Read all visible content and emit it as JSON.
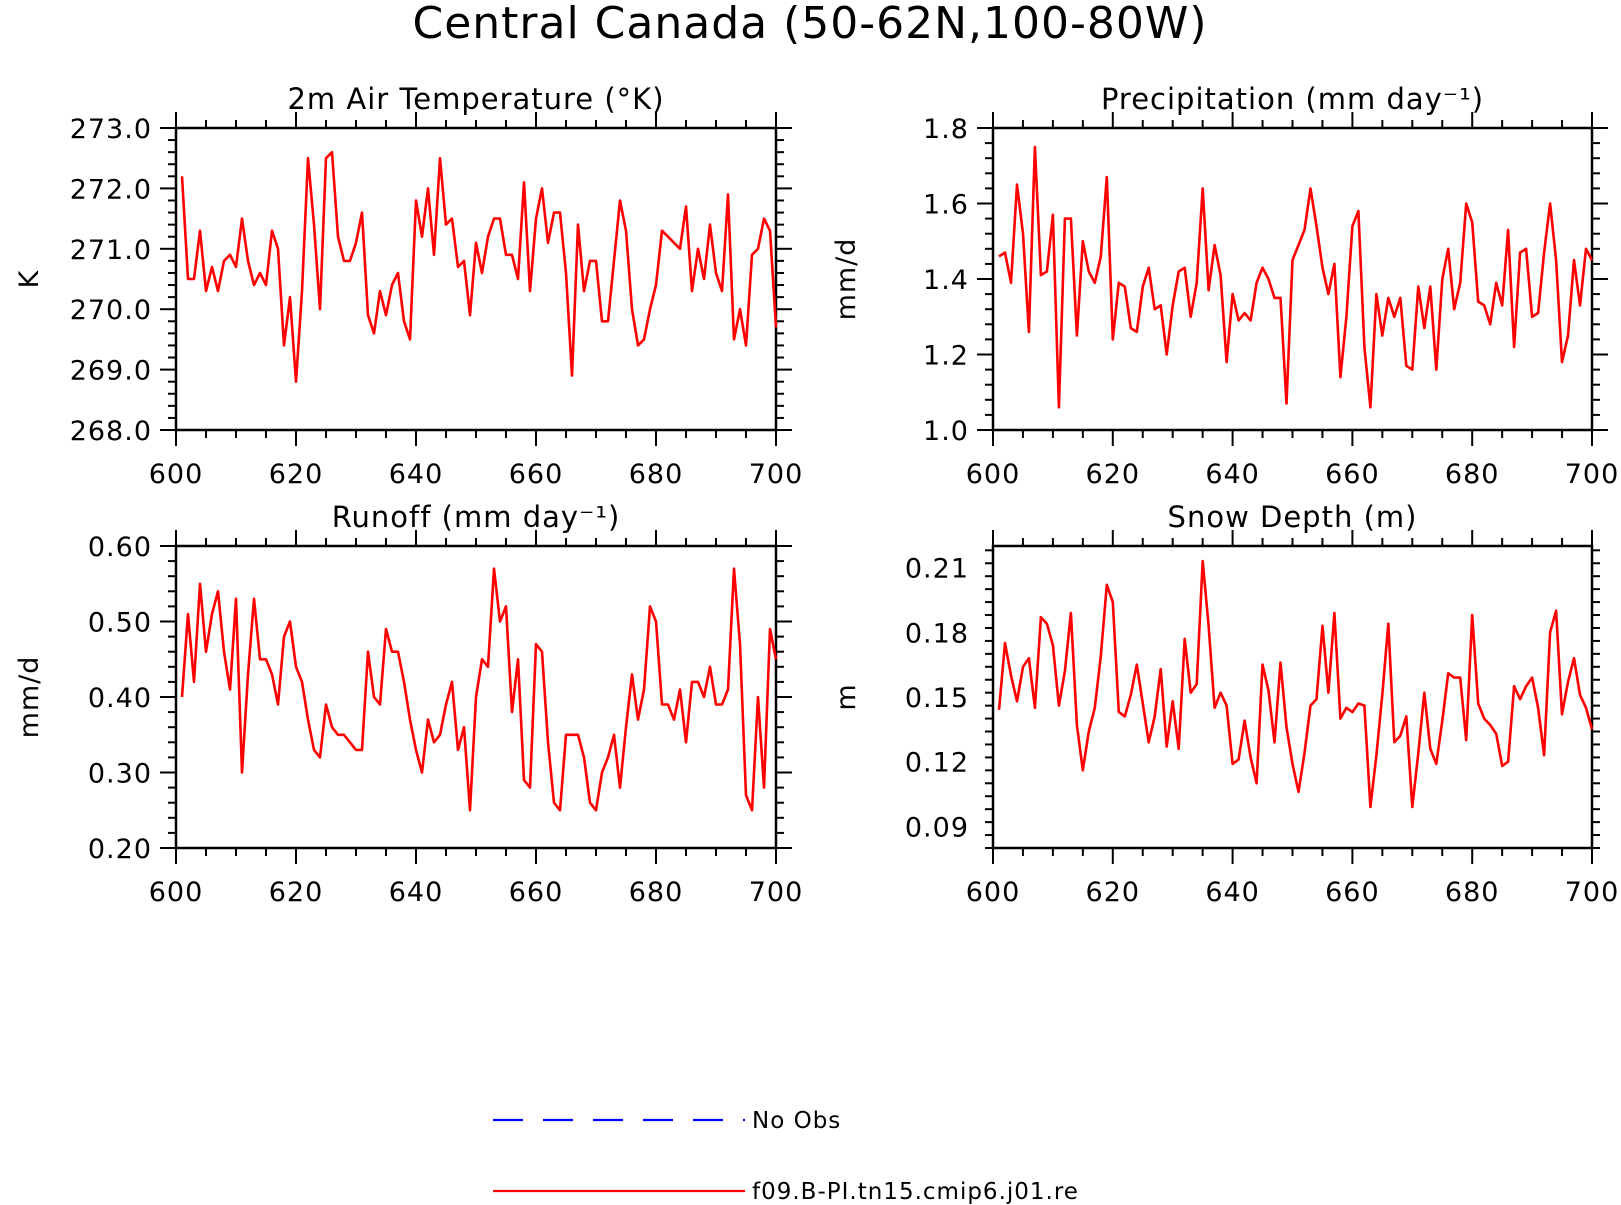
{
  "title": "Central Canada (50-62N,100-80W)",
  "legend": [
    {
      "label": "No Obs",
      "color": "#0000ff",
      "style": "dashed"
    },
    {
      "label": "f09.B-PI.tn15.cmip6.j01.re",
      "color": "#ff0000",
      "style": "solid"
    }
  ],
  "chart_data": [
    {
      "type": "line",
      "title": "2m Air Temperature (°K)",
      "ylabel": "K",
      "xlim": [
        600,
        700
      ],
      "ylim": [
        268.0,
        273.0
      ],
      "xticks": [
        "600",
        "620",
        "640",
        "660",
        "680",
        "700"
      ],
      "yticks": [
        "268.0",
        "269.0",
        "270.0",
        "271.0",
        "272.0",
        "273.0"
      ],
      "x_start": 601,
      "series": [
        {
          "color": "#ff0000",
          "values": [
            272.2,
            270.5,
            270.5,
            271.3,
            270.3,
            270.7,
            270.3,
            270.8,
            270.9,
            270.7,
            271.5,
            270.8,
            270.4,
            270.6,
            270.4,
            271.3,
            271.0,
            269.4,
            270.2,
            268.8,
            270.3,
            272.5,
            271.4,
            270.0,
            272.5,
            272.6,
            271.2,
            270.8,
            270.8,
            271.1,
            271.6,
            269.9,
            269.6,
            270.3,
            269.9,
            270.4,
            270.6,
            269.8,
            269.5,
            271.8,
            271.2,
            272.0,
            270.9,
            272.5,
            271.4,
            271.5,
            270.7,
            270.8,
            269.9,
            271.1,
            270.6,
            271.2,
            271.5,
            271.5,
            270.9,
            270.9,
            270.5,
            272.1,
            270.3,
            271.5,
            272.0,
            271.1,
            271.6,
            271.6,
            270.6,
            268.9,
            271.4,
            270.3,
            270.8,
            270.8,
            269.8,
            269.8,
            270.8,
            271.8,
            271.3,
            270.0,
            269.4,
            269.5,
            270.0,
            270.4,
            271.3,
            271.2,
            271.1,
            271.0,
            271.7,
            270.3,
            271.0,
            270.5,
            271.4,
            270.6,
            270.3,
            271.9,
            269.5,
            270.0,
            269.4,
            270.9,
            271.0,
            271.5,
            271.3,
            269.7
          ]
        }
      ]
    },
    {
      "type": "line",
      "title": "Precipitation (mm day⁻¹)",
      "ylabel": "mm/d",
      "xlim": [
        600,
        700
      ],
      "ylim": [
        1.0,
        1.8
      ],
      "xticks": [
        "600",
        "620",
        "640",
        "660",
        "680",
        "700"
      ],
      "yticks": [
        "1.0",
        "1.2",
        "1.4",
        "1.6",
        "1.8"
      ],
      "x_start": 601,
      "series": [
        {
          "color": "#ff0000",
          "values": [
            1.46,
            1.47,
            1.39,
            1.65,
            1.52,
            1.26,
            1.75,
            1.41,
            1.42,
            1.57,
            1.06,
            1.56,
            1.56,
            1.25,
            1.5,
            1.42,
            1.39,
            1.46,
            1.67,
            1.24,
            1.39,
            1.38,
            1.27,
            1.26,
            1.38,
            1.43,
            1.32,
            1.33,
            1.2,
            1.33,
            1.42,
            1.43,
            1.3,
            1.39,
            1.64,
            1.37,
            1.49,
            1.41,
            1.18,
            1.36,
            1.29,
            1.31,
            1.29,
            1.39,
            1.43,
            1.4,
            1.35,
            1.35,
            1.07,
            1.45,
            1.49,
            1.53,
            1.64,
            1.54,
            1.43,
            1.36,
            1.44,
            1.14,
            1.3,
            1.54,
            1.58,
            1.22,
            1.06,
            1.36,
            1.25,
            1.35,
            1.3,
            1.35,
            1.17,
            1.16,
            1.38,
            1.27,
            1.38,
            1.16,
            1.4,
            1.48,
            1.32,
            1.39,
            1.6,
            1.55,
            1.34,
            1.33,
            1.28,
            1.39,
            1.33,
            1.53,
            1.22,
            1.47,
            1.48,
            1.3,
            1.31,
            1.47,
            1.6,
            1.45,
            1.18,
            1.25,
            1.45,
            1.33,
            1.48,
            1.45
          ]
        }
      ]
    },
    {
      "type": "line",
      "title": "Runoff (mm day⁻¹)",
      "ylabel": "mm/d",
      "xlim": [
        600,
        700
      ],
      "ylim": [
        0.2,
        0.6
      ],
      "xticks": [
        "600",
        "620",
        "640",
        "660",
        "680",
        "700"
      ],
      "yticks": [
        "0.20",
        "0.30",
        "0.40",
        "0.50",
        "0.60"
      ],
      "x_start": 601,
      "series": [
        {
          "color": "#ff0000",
          "values": [
            0.4,
            0.51,
            0.42,
            0.55,
            0.46,
            0.51,
            0.54,
            0.46,
            0.41,
            0.53,
            0.3,
            0.43,
            0.53,
            0.45,
            0.45,
            0.43,
            0.39,
            0.48,
            0.5,
            0.44,
            0.42,
            0.37,
            0.33,
            0.32,
            0.39,
            0.36,
            0.35,
            0.35,
            0.34,
            0.33,
            0.33,
            0.46,
            0.4,
            0.39,
            0.49,
            0.46,
            0.46,
            0.42,
            0.37,
            0.33,
            0.3,
            0.37,
            0.34,
            0.35,
            0.39,
            0.42,
            0.33,
            0.36,
            0.25,
            0.4,
            0.45,
            0.44,
            0.57,
            0.5,
            0.52,
            0.38,
            0.45,
            0.29,
            0.28,
            0.47,
            0.46,
            0.34,
            0.26,
            0.25,
            0.35,
            0.35,
            0.35,
            0.32,
            0.26,
            0.25,
            0.3,
            0.32,
            0.35,
            0.28,
            0.36,
            0.43,
            0.37,
            0.41,
            0.52,
            0.5,
            0.39,
            0.39,
            0.37,
            0.41,
            0.34,
            0.42,
            0.42,
            0.4,
            0.44,
            0.39,
            0.39,
            0.41,
            0.57,
            0.47,
            0.27,
            0.25,
            0.4,
            0.28,
            0.49,
            0.45
          ]
        }
      ]
    },
    {
      "type": "line",
      "title": "Snow Depth (m)",
      "ylabel": "m",
      "xlim": [
        600,
        700
      ],
      "ylim": [
        0.08,
        0.22
      ],
      "xticks": [
        "600",
        "620",
        "640",
        "660",
        "680",
        "700"
      ],
      "yticks": [
        "0.09",
        "0.12",
        "0.15",
        "0.18",
        "0.21"
      ],
      "x_start": 601,
      "series": [
        {
          "color": "#ff0000",
          "values": [
            0.144,
            0.175,
            0.16,
            0.148,
            0.164,
            0.168,
            0.145,
            0.187,
            0.184,
            0.174,
            0.146,
            0.162,
            0.189,
            0.137,
            0.116,
            0.134,
            0.145,
            0.169,
            0.202,
            0.194,
            0.143,
            0.141,
            0.151,
            0.165,
            0.147,
            0.129,
            0.141,
            0.163,
            0.127,
            0.148,
            0.126,
            0.177,
            0.152,
            0.156,
            0.213,
            0.183,
            0.145,
            0.152,
            0.146,
            0.119,
            0.121,
            0.139,
            0.122,
            0.11,
            0.165,
            0.153,
            0.129,
            0.166,
            0.136,
            0.119,
            0.106,
            0.124,
            0.146,
            0.149,
            0.183,
            0.152,
            0.189,
            0.14,
            0.145,
            0.143,
            0.147,
            0.146,
            0.099,
            0.123,
            0.151,
            0.184,
            0.129,
            0.132,
            0.141,
            0.099,
            0.124,
            0.152,
            0.126,
            0.119,
            0.139,
            0.161,
            0.159,
            0.159,
            0.13,
            0.188,
            0.147,
            0.14,
            0.137,
            0.133,
            0.118,
            0.12,
            0.155,
            0.149,
            0.155,
            0.159,
            0.145,
            0.123,
            0.18,
            0.19,
            0.142,
            0.157,
            0.168,
            0.151,
            0.145,
            0.135
          ]
        }
      ]
    }
  ]
}
